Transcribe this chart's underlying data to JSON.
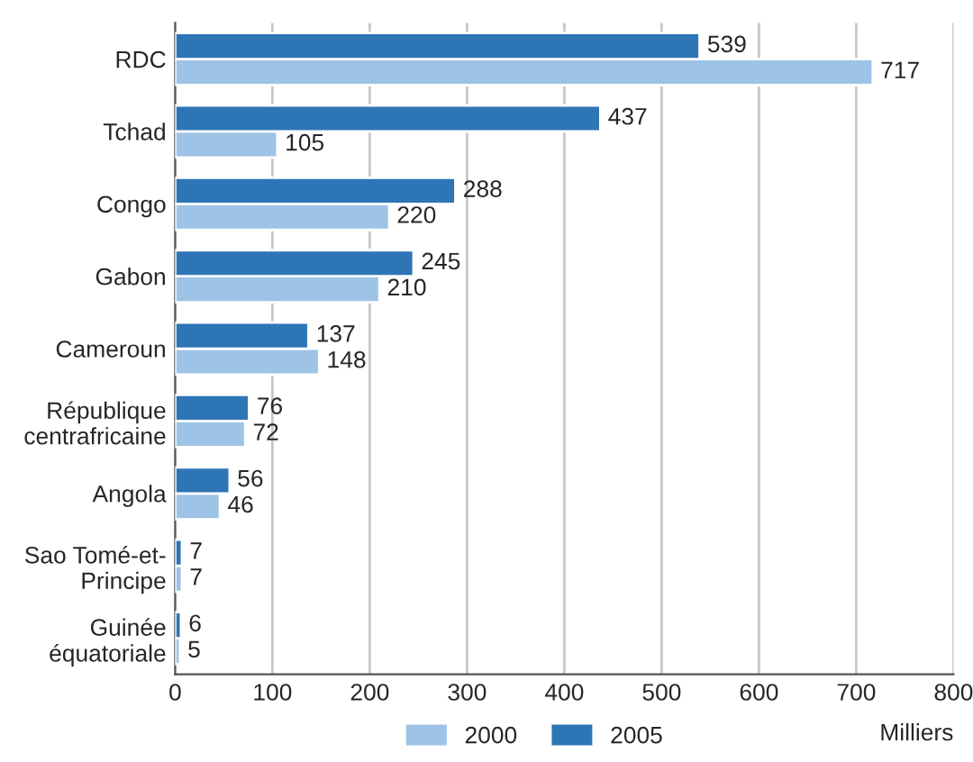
{
  "chart_data": {
    "type": "bar",
    "orientation": "horizontal",
    "xlabel": "Milliers",
    "categories": [
      "RDC",
      "Tchad",
      "Congo",
      "Gabon",
      "Cameroun",
      "République\ncentrafricaine",
      "Angola",
      "Sao Tomé-et-\nPrincipe",
      "Guinée\néquatoriale"
    ],
    "series": [
      {
        "name": "2000",
        "color": "#9dc3e6",
        "values": [
          717,
          105,
          220,
          210,
          148,
          72,
          46,
          7,
          5
        ]
      },
      {
        "name": "2005",
        "color": "#2e75b6",
        "values": [
          539,
          437,
          288,
          245,
          137,
          76,
          56,
          7,
          6
        ]
      }
    ],
    "xlim": [
      0,
      800
    ],
    "xticks": [
      0,
      100,
      200,
      300,
      400,
      500,
      600,
      700,
      800
    ],
    "grid": "x",
    "legend": "bottom",
    "data_labels": true
  }
}
